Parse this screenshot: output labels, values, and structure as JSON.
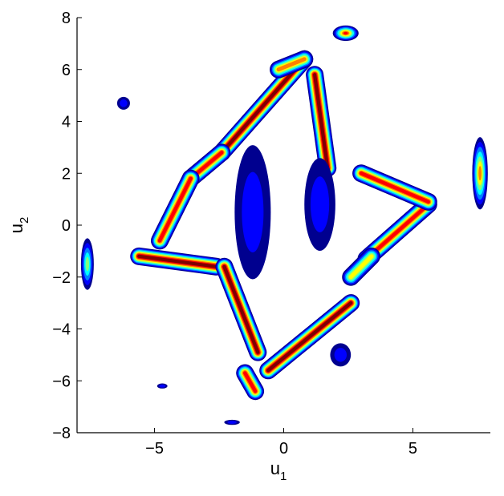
{
  "chart_data": {
    "type": "heatmap",
    "title": "",
    "xlabel": "u",
    "xlabel_sub": "1",
    "ylabel": "u",
    "ylabel_sub": "2",
    "xlim": [
      -8,
      8
    ],
    "ylim": [
      -8,
      8
    ],
    "xticks": [
      -5,
      0,
      5
    ],
    "xtick_labels": [
      "−5",
      "0",
      "5"
    ],
    "yticks": [
      -8,
      -6,
      -4,
      -2,
      0,
      2,
      4,
      6,
      8
    ],
    "ytick_labels": [
      "−8",
      "−6",
      "−4",
      "−2",
      "0",
      "2",
      "4",
      "6",
      "8"
    ],
    "grid": false,
    "colormap": [
      "#00008f",
      "#0000ff",
      "#0080ff",
      "#00ffff",
      "#80ff80",
      "#ffff00",
      "#ff8000",
      "#ff0000",
      "#800000"
    ],
    "ridges": [
      {
        "from": [
          -2.4,
          2.8
        ],
        "to": [
          0.8,
          6.4
        ],
        "peak": 0.95
      },
      {
        "from": [
          -2.4,
          2.8
        ],
        "to": [
          -3.6,
          1.8
        ],
        "peak": 0.85
      },
      {
        "from": [
          -3.6,
          1.8
        ],
        "to": [
          -4.8,
          -0.6
        ],
        "peak": 0.9
      },
      {
        "from": [
          -5.6,
          -1.2
        ],
        "to": [
          -2.6,
          -1.6
        ],
        "peak": 0.95
      },
      {
        "from": [
          -2.3,
          -1.6
        ],
        "to": [
          -1.0,
          -4.9
        ],
        "peak": 0.95
      },
      {
        "from": [
          -1.5,
          -5.7
        ],
        "to": [
          -1.1,
          -6.4
        ],
        "peak": 0.9
      },
      {
        "from": [
          -0.6,
          -5.6
        ],
        "to": [
          2.6,
          -3.0
        ],
        "peak": 0.95
      },
      {
        "from": [
          3.2,
          -1.3
        ],
        "to": [
          5.6,
          0.8
        ],
        "peak": 0.9
      },
      {
        "from": [
          3.0,
          2.0
        ],
        "to": [
          5.6,
          0.9
        ],
        "peak": 0.9
      },
      {
        "from": [
          1.2,
          5.8
        ],
        "to": [
          1.7,
          2.2
        ],
        "peak": 0.95
      },
      {
        "from": [
          -0.2,
          6.0
        ],
        "to": [
          0.8,
          6.4
        ],
        "peak": 0.8
      },
      {
        "from": [
          2.6,
          -2.0
        ],
        "to": [
          3.4,
          -1.2
        ],
        "peak": 0.7
      }
    ],
    "patches": [
      {
        "center": [
          2.4,
          7.4
        ],
        "sx": 0.5,
        "sy": 0.3,
        "peak": 0.85
      },
      {
        "center": [
          7.6,
          2.0
        ],
        "sx": 0.3,
        "sy": 1.4,
        "peak": 0.8
      },
      {
        "center": [
          -7.6,
          -1.5
        ],
        "sx": 0.25,
        "sy": 1.0,
        "peak": 0.5
      },
      {
        "center": [
          -6.2,
          4.7
        ],
        "sx": 0.25,
        "sy": 0.25,
        "peak": 0.2
      },
      {
        "center": [
          2.2,
          -5.0
        ],
        "sx": 0.4,
        "sy": 0.45,
        "peak": 0.2
      },
      {
        "center": [
          -4.7,
          -6.2
        ],
        "sx": 0.2,
        "sy": 0.1,
        "peak": 0.2
      },
      {
        "center": [
          -2.0,
          -7.6
        ],
        "sx": 0.3,
        "sy": 0.1,
        "peak": 0.2
      },
      {
        "center": [
          -1.2,
          0.5
        ],
        "sx": 0.7,
        "sy": 2.6,
        "peak": 0.25
      },
      {
        "center": [
          1.4,
          0.8
        ],
        "sx": 0.6,
        "sy": 1.8,
        "peak": 0.2
      }
    ]
  }
}
